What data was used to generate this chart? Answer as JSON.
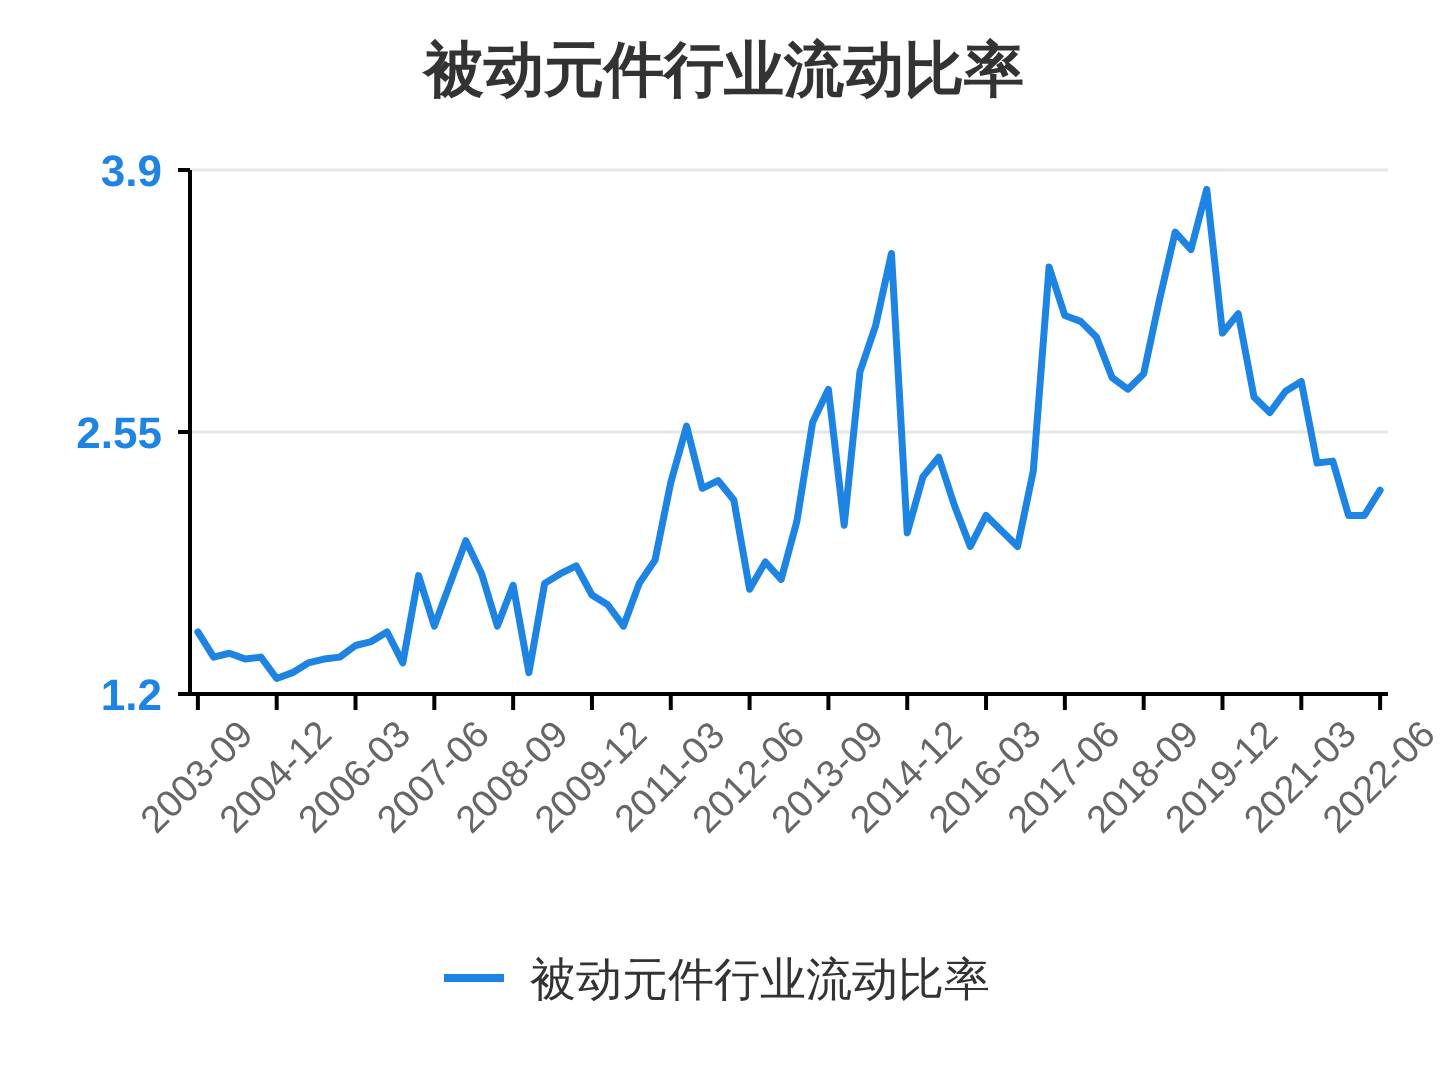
{
  "chart_data": {
    "type": "line",
    "title": "被动元件行业流动比率",
    "categories": [
      "2003-09",
      null,
      null,
      null,
      null,
      "2004-12",
      null,
      null,
      null,
      null,
      "2006-03",
      null,
      null,
      null,
      null,
      "2007-06",
      null,
      null,
      null,
      null,
      "2008-09",
      null,
      null,
      null,
      null,
      "2009-12",
      null,
      null,
      null,
      null,
      "2011-03",
      null,
      null,
      null,
      null,
      "2012-06",
      null,
      null,
      null,
      null,
      "2013-09",
      null,
      null,
      null,
      null,
      "2014-12",
      null,
      null,
      null,
      null,
      "2016-03",
      null,
      null,
      null,
      null,
      "2017-06",
      null,
      null,
      null,
      null,
      "2018-09",
      null,
      null,
      null,
      null,
      "2019-12",
      null,
      null,
      null,
      null,
      "2021-03",
      null,
      null,
      null,
      null,
      "2022-06"
    ],
    "series": [
      {
        "name": "被动元件行业流动比率",
        "color": "#1e84e3",
        "values": [
          1.52,
          1.39,
          1.41,
          1.38,
          1.39,
          1.28,
          1.31,
          1.36,
          1.38,
          1.39,
          1.45,
          1.47,
          1.52,
          1.36,
          1.81,
          1.55,
          1.77,
          1.99,
          1.82,
          1.55,
          1.76,
          1.31,
          1.77,
          1.82,
          1.86,
          1.71,
          1.66,
          1.55,
          1.77,
          1.89,
          2.29,
          2.58,
          2.26,
          2.3,
          2.2,
          1.74,
          1.88,
          1.79,
          2.09,
          2.6,
          2.77,
          2.07,
          2.86,
          3.1,
          3.47,
          2.03,
          2.32,
          2.42,
          2.17,
          1.96,
          2.12,
          2.04,
          1.96,
          2.35,
          3.4,
          3.15,
          3.12,
          3.04,
          2.83,
          2.77,
          2.85,
          3.23,
          3.58,
          3.49,
          3.8,
          3.06,
          3.16,
          2.73,
          2.65,
          2.76,
          2.81,
          2.39,
          2.4,
          2.12,
          2.12,
          2.25
        ]
      }
    ],
    "ylim": [
      1.2,
      3.9
    ],
    "yticks": [
      1.2,
      2.55,
      3.9
    ],
    "grid": "y",
    "legend": "bottom"
  }
}
